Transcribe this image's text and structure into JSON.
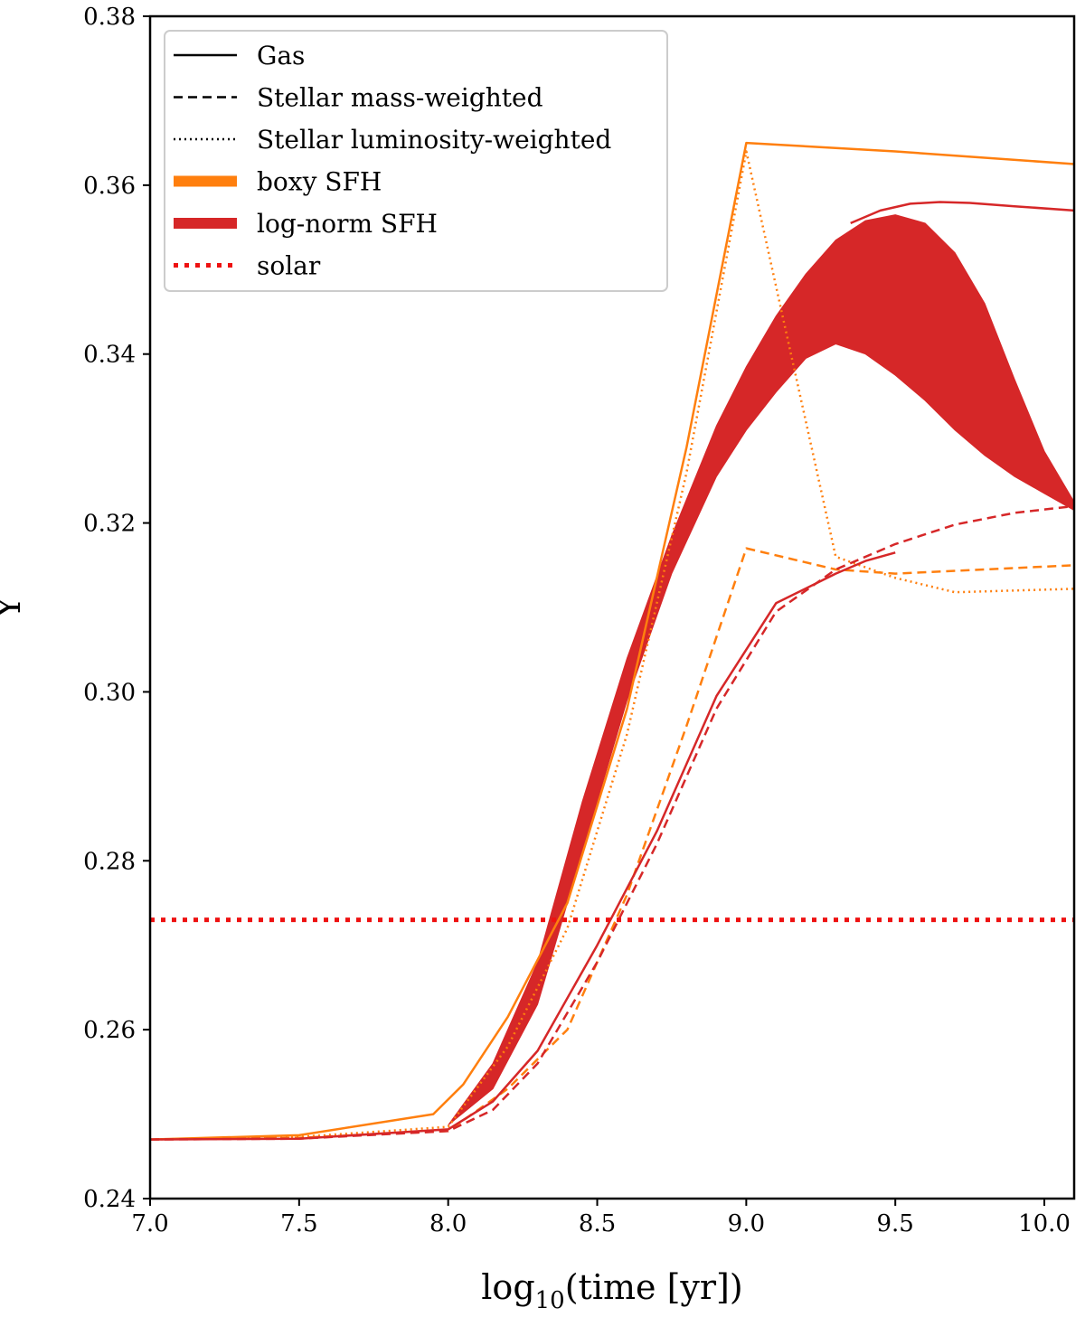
{
  "chart_data": {
    "type": "line",
    "xlabel_main": "log",
    "xlabel_sub": "10",
    "xlabel_rest": "(time [yr])",
    "ylabel": "Y",
    "xlim": [
      7.0,
      10.1
    ],
    "ylim": [
      0.24,
      0.38
    ],
    "xticks": [
      "7.0",
      "7.5",
      "8.0",
      "8.5",
      "9.0",
      "9.5",
      "10.0"
    ],
    "yticks": [
      "0.24",
      "0.26",
      "0.28",
      "0.30",
      "0.32",
      "0.34",
      "0.36",
      "0.38"
    ],
    "colors": {
      "boxy": "#ff7f0e",
      "lognorm": "#d62728",
      "solar": "#ee1111"
    },
    "legend": {
      "placement": "top-left",
      "entries": [
        {
          "label": "Gas",
          "style": "solid",
          "color": "#000000"
        },
        {
          "label": "Stellar mass-weighted",
          "style": "dashed",
          "color": "#000000"
        },
        {
          "label": "Stellar luminosity-weighted",
          "style": "dotted",
          "color": "#000000"
        },
        {
          "label": "boxy SFH",
          "style": "thick",
          "color": "#ff7f0e"
        },
        {
          "label": "log-norm SFH",
          "style": "thick",
          "color": "#d62728"
        },
        {
          "label": "solar",
          "style": "thickdotted",
          "color": "#ee1111"
        }
      ]
    },
    "solar_y": 0.273,
    "series": [
      {
        "name": "boxy gas",
        "style": "solid",
        "color": "#ff7f0e",
        "x": [
          7.0,
          7.5,
          7.95,
          8.05,
          8.2,
          8.4,
          8.6,
          8.8,
          9.0,
          9.5,
          10.1
        ],
        "y": [
          0.247,
          0.2475,
          0.25,
          0.2535,
          0.2615,
          0.275,
          0.298,
          0.329,
          0.365,
          0.364,
          0.3625
        ]
      },
      {
        "name": "boxy luminosity-weighted",
        "style": "dotted",
        "color": "#ff7f0e",
        "x": [
          7.0,
          7.5,
          8.0,
          8.2,
          8.4,
          8.6,
          8.8,
          9.0,
          9.15,
          9.3,
          9.5,
          9.7,
          10.1
        ],
        "y": [
          0.247,
          0.2473,
          0.2485,
          0.258,
          0.272,
          0.295,
          0.326,
          0.364,
          0.34,
          0.316,
          0.3135,
          0.3118,
          0.3122
        ]
      },
      {
        "name": "boxy mass-weighted",
        "style": "dashed",
        "color": "#ff7f0e",
        "x": [
          7.0,
          7.5,
          8.0,
          8.2,
          8.4,
          8.6,
          8.8,
          9.0,
          9.3,
          9.5,
          10.1
        ],
        "y": [
          0.247,
          0.2472,
          0.248,
          0.253,
          0.26,
          0.276,
          0.296,
          0.317,
          0.3145,
          0.314,
          0.315
        ]
      },
      {
        "name": "log-norm gas",
        "style": "solid",
        "color": "#d62728",
        "x": [
          9.35,
          9.45,
          9.55,
          9.65,
          9.75,
          9.9,
          10.1
        ],
        "y": [
          0.3555,
          0.357,
          0.3578,
          0.358,
          0.3579,
          0.3575,
          0.357
        ]
      },
      {
        "name": "log-norm mass-weighted",
        "style": "dashed",
        "color": "#d62728",
        "x": [
          7.0,
          7.5,
          8.0,
          8.15,
          8.3,
          8.5,
          8.7,
          8.9,
          9.1,
          9.3,
          9.5,
          9.7,
          9.9,
          10.1
        ],
        "y": [
          0.247,
          0.2471,
          0.248,
          0.2505,
          0.256,
          0.268,
          0.282,
          0.298,
          0.3095,
          0.3145,
          0.3175,
          0.3198,
          0.3212,
          0.322
        ]
      },
      {
        "name": "log-norm luminosity-weighted",
        "style": "solid",
        "color": "#d62728",
        "x": [
          7.0,
          7.5,
          8.0,
          8.15,
          8.3,
          8.5,
          8.7,
          8.9,
          9.1,
          9.3,
          9.4,
          9.5
        ],
        "y": [
          0.247,
          0.2471,
          0.2482,
          0.2515,
          0.2575,
          0.27,
          0.2835,
          0.2995,
          0.3105,
          0.314,
          0.3155,
          0.3165
        ]
      }
    ],
    "bands": [
      {
        "name": "log-norm gas band",
        "color": "#d62728",
        "x": [
          8.0,
          8.15,
          8.3,
          8.45,
          8.6,
          8.75,
          8.9,
          9.0,
          9.1,
          9.2,
          9.3,
          9.4,
          9.5,
          9.6,
          9.7,
          9.8,
          9.9,
          10.0,
          10.1
        ],
        "upper": [
          0.2487,
          0.256,
          0.268,
          0.287,
          0.304,
          0.3185,
          0.3315,
          0.3385,
          0.3445,
          0.3495,
          0.3535,
          0.3558,
          0.3565,
          0.3555,
          0.352,
          0.346,
          0.337,
          0.3285,
          0.3225
        ],
        "lower": [
          0.2487,
          0.253,
          0.263,
          0.281,
          0.299,
          0.314,
          0.3255,
          0.331,
          0.3355,
          0.3395,
          0.3412,
          0.34,
          0.3375,
          0.3345,
          0.331,
          0.328,
          0.3255,
          0.3235,
          0.3215
        ]
      }
    ]
  }
}
